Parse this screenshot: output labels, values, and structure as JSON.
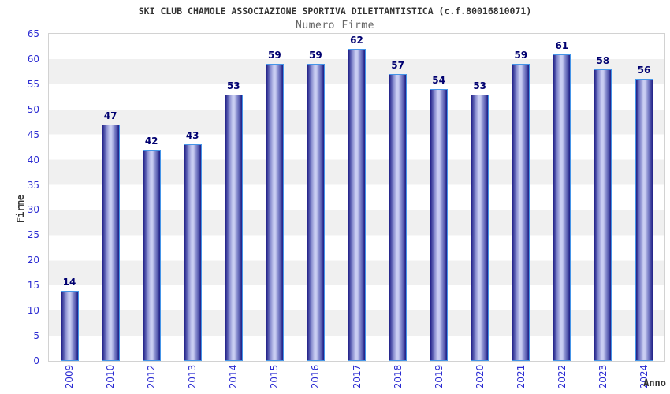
{
  "header": {
    "title": "SKI CLUB CHAMOLE ASSOCIAZIONE SPORTIVA DILETTANTISTICA (c.f.80016810071)",
    "subtitle": "Numero Firme"
  },
  "chart_data": {
    "type": "bar",
    "title": "SKI CLUB CHAMOLE ASSOCIAZIONE SPORTIVA DILETTANTISTICA (c.f.80016810071)",
    "subtitle": "Numero Firme",
    "xlabel": "Anno",
    "ylabel": "Firme",
    "categories": [
      "2009",
      "2010",
      "2012",
      "2013",
      "2014",
      "2015",
      "2016",
      "2017",
      "2018",
      "2019",
      "2020",
      "2021",
      "2022",
      "2023",
      "2024"
    ],
    "values": [
      14,
      47,
      42,
      43,
      53,
      59,
      59,
      62,
      57,
      54,
      53,
      59,
      61,
      58,
      56
    ],
    "ylim": [
      0,
      65
    ],
    "ytick_step": 5,
    "yticks": [
      0,
      5,
      10,
      15,
      20,
      25,
      30,
      35,
      40,
      45,
      50,
      55,
      60,
      65
    ],
    "grid": "alternating-horizontal-bands-every-5",
    "legend": "none",
    "bar_value_labels": true,
    "x_tick_rotation_deg": -90,
    "colors": {
      "background": "#ffffff",
      "title_color": "#333333",
      "subtitle_color": "#666666",
      "axis_title_color": "#333333",
      "tick_label_color": "#2b2bd2",
      "value_label_color": "#000070",
      "bar_border": "#4595e8",
      "bar_dark": "#1e1e86",
      "bar_mid": "#7b80c8",
      "bar_light": "#c9cdf2",
      "band_white": "#ffffff",
      "band_gray": "#f0f0f0",
      "plot_border": "#d2d2d2"
    }
  }
}
